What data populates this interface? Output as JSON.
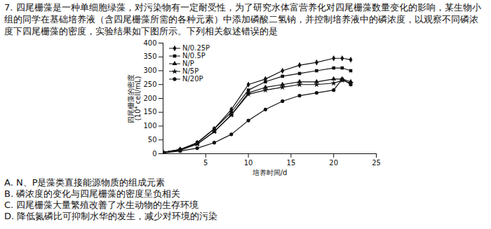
{
  "document": {
    "question": "7. 四尾栅藻是一种单细胞绿藻，对污染物有一定耐受性，为了研究水体富营养化对四尾栅藻数量变化的影响，某生物小组的同学在基础培养液（含四尾栅藻所需的各种元素）中添加磷酸二氢钠，并控制培养液中的磷浓度，以观察不同磷浓度下四尾栅藻的密度，实验结果如下图所示。下列相关叙述错误的是",
    "options": [
      "A. N、P是藻类直接能源物质的组成元素",
      "B. 磷浓度的变化与四尾栅藻的密度呈负相关",
      "C. 四尾栅藻大量繁殖改善了水生动物的生存环境",
      "D. 降低氮磷比可抑制水华的发生，减少对环境的污染"
    ]
  },
  "chart_data": {
    "type": "line",
    "x_label": "培养时间/d",
    "y_label": "四尾栅藻的密度\n(10⁴ cell/mL)",
    "x": [
      0,
      2,
      4,
      6,
      8,
      10,
      12,
      14,
      16,
      18,
      20,
      21,
      22
    ],
    "series": [
      {
        "name": "N/0.25P",
        "color": "#111111",
        "marker": "diamond",
        "values": [
          5,
          15,
          40,
          90,
          160,
          250,
          270,
          300,
          320,
          330,
          345,
          345,
          340
        ]
      },
      {
        "name": "N/0.5P",
        "color": "#111111",
        "marker": "square",
        "values": [
          5,
          15,
          40,
          90,
          150,
          230,
          260,
          280,
          290,
          300,
          310,
          310,
          300
        ]
      },
      {
        "name": "N/P",
        "color": "#111111",
        "marker": "triangle",
        "values": [
          5,
          15,
          35,
          80,
          140,
          220,
          240,
          250,
          260,
          260,
          270,
          270,
          260
        ]
      },
      {
        "name": "N/5P",
        "color": "#111111",
        "marker": "star",
        "values": [
          5,
          12,
          35,
          80,
          140,
          215,
          230,
          240,
          250,
          250,
          255,
          265,
          255
        ]
      },
      {
        "name": "N/20P",
        "color": "#111111",
        "marker": "circle",
        "values": [
          2,
          10,
          20,
          40,
          70,
          120,
          160,
          190,
          210,
          220,
          230,
          270,
          250
        ]
      }
    ],
    "xlim": [
      0,
      25
    ],
    "ylim": [
      0,
      400
    ],
    "xticks": [
      5,
      10,
      15,
      20,
      25
    ],
    "yticks": [
      0,
      50,
      100,
      150,
      200,
      250,
      300,
      350,
      400
    ],
    "grid": false,
    "legend": "top-left"
  }
}
